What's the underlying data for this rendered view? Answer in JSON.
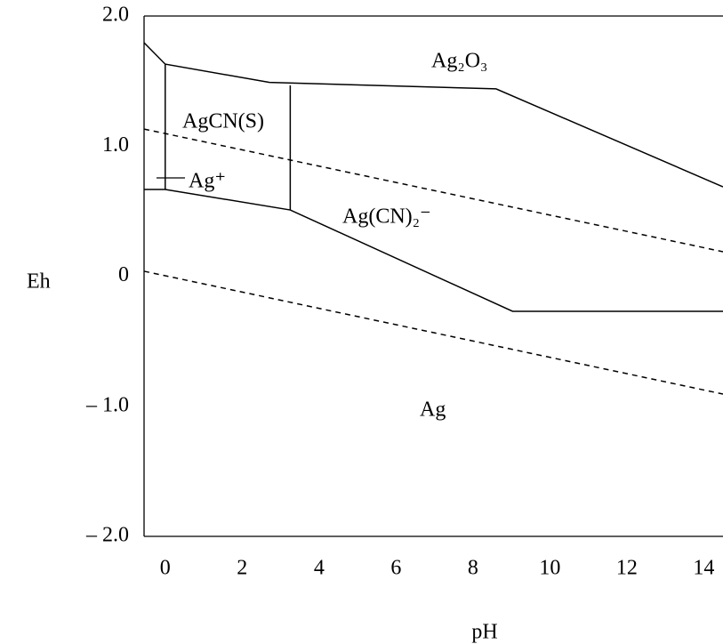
{
  "chart_data": {
    "type": "line",
    "x_label": "pH",
    "y_label": "Eh",
    "xlim": [
      -0.55,
      14.5
    ],
    "ylim": [
      -2.0,
      2.0
    ],
    "xticks": [
      0,
      2,
      4,
      6,
      8,
      10,
      12,
      14
    ],
    "yticks": [
      {
        "value": 2.0,
        "label": "2.0"
      },
      {
        "value": 1.0,
        "label": "1.0"
      },
      0,
      {
        "value": -1.0,
        "label": "– 1.0"
      },
      {
        "value": -2.0,
        "label": "– 2.0"
      }
    ],
    "series": [
      {
        "style": "solid",
        "color": "#000000",
        "x": [
          -0.55,
          0,
          2.71,
          8.6,
          14.5
        ],
        "values": [
          1.795,
          1.63,
          1.49,
          1.44,
          0.687
        ]
      },
      {
        "style": "solid",
        "color": "#000000",
        "x": [
          0,
          0
        ],
        "values": [
          1.63,
          0.667
        ]
      },
      {
        "style": "solid",
        "color": "#000000",
        "x": [
          -0.55,
          0,
          3.25,
          9.03,
          14.5
        ],
        "values": [
          0.667,
          0.667,
          0.509,
          -0.27,
          -0.27
        ]
      },
      {
        "style": "solid",
        "color": "#000000",
        "x": [
          3.25,
          3.25
        ],
        "values": [
          1.467,
          0.509
        ]
      },
      {
        "style": "dashed",
        "color": "#000000",
        "x": [
          -0.55,
          14.5
        ],
        "values": [
          1.131,
          0.188
        ]
      },
      {
        "style": "dashed",
        "color": "#000000",
        "x": [
          -0.55,
          14.5
        ],
        "values": [
          0.038,
          -0.906
        ]
      }
    ],
    "annotations": [
      "Ag₂O₃",
      "AgCN(S)",
      "Ag⁺",
      "Ag(CN)₂⁻",
      "Ag"
    ]
  }
}
